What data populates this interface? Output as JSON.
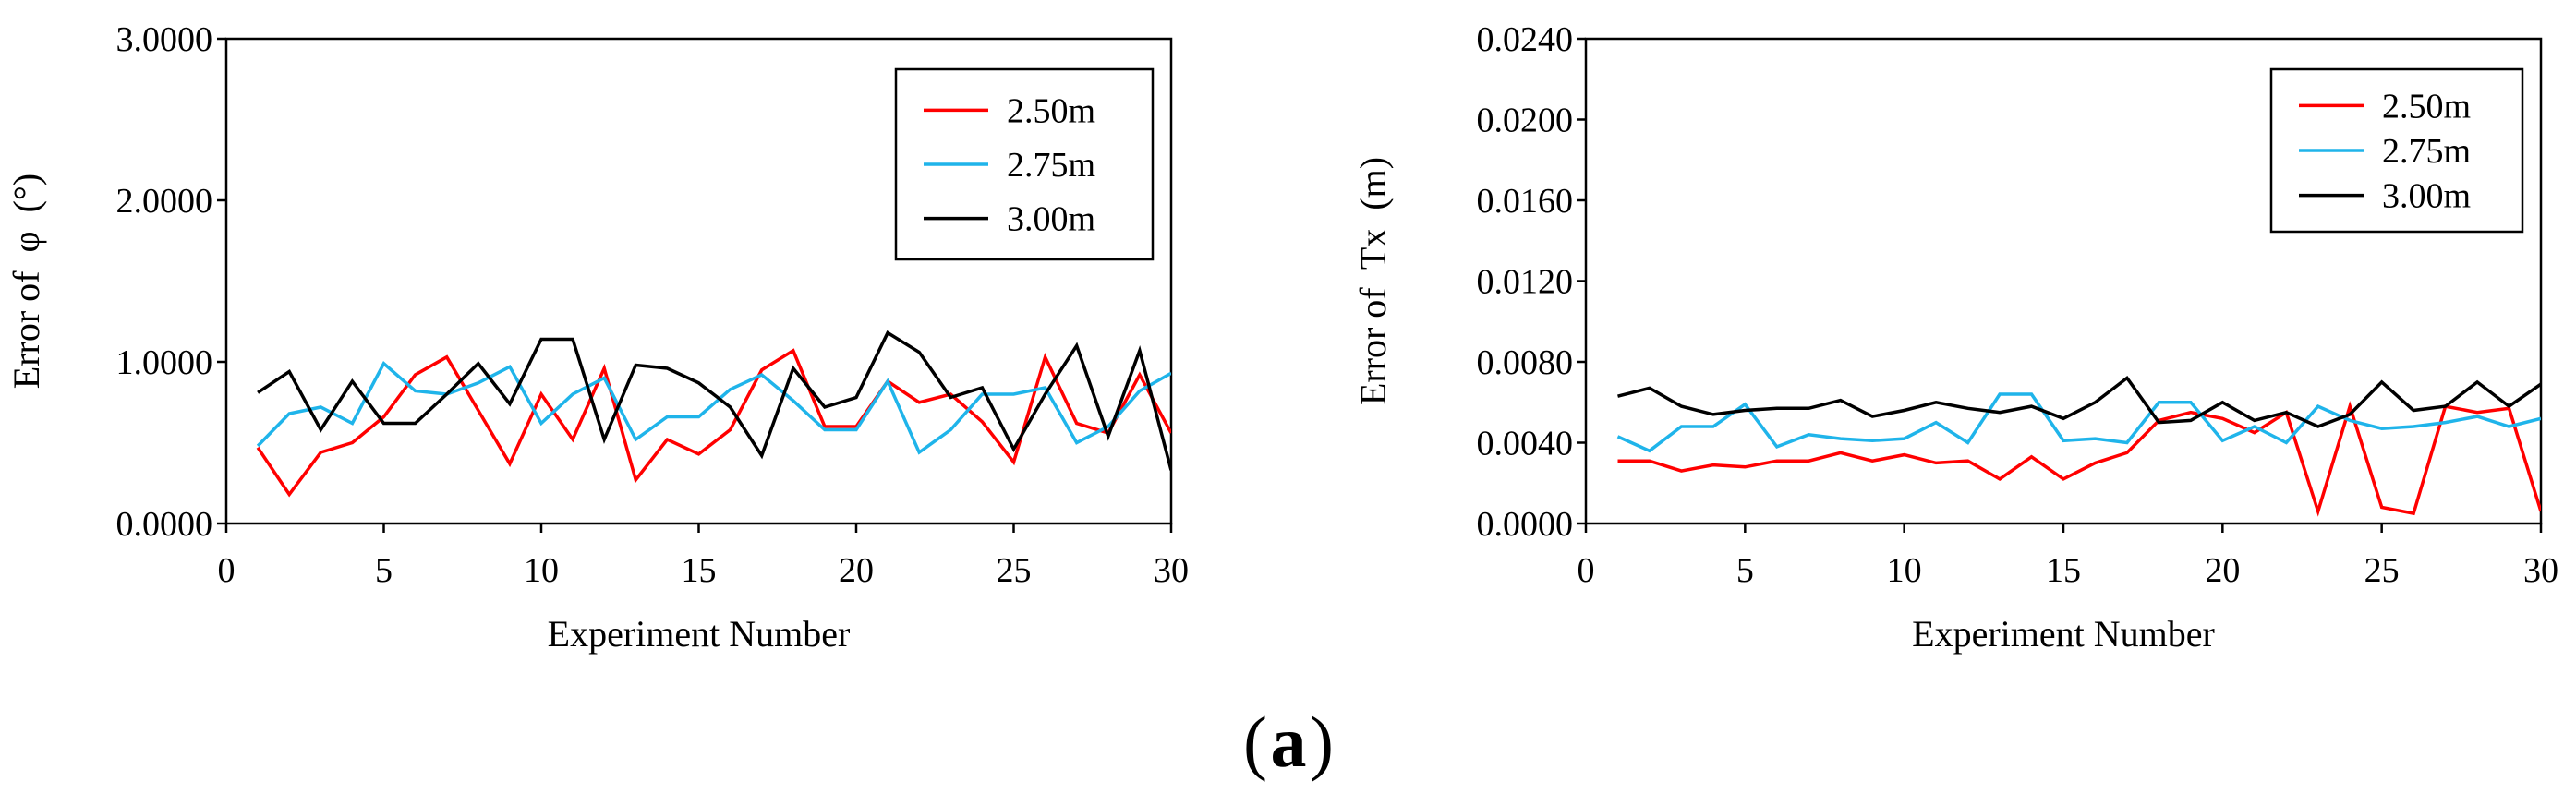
{
  "chart_data": [
    {
      "type": "line",
      "title": "",
      "xlabel": "Experiment Number",
      "ylabel": "Error of  φ  (°)",
      "xlim": [
        0,
        30
      ],
      "ylim": [
        0,
        3
      ],
      "xticks": [
        0,
        5,
        10,
        15,
        20,
        25,
        30
      ],
      "xtick_labels": [
        "0",
        "5",
        "10",
        "15",
        "20",
        "25",
        "30"
      ],
      "yticks": [
        0,
        1,
        2,
        3
      ],
      "ytick_labels": [
        "0.0000",
        "1.0000",
        "2.0000",
        "3.0000"
      ],
      "legend_position": "top-right",
      "grid": false,
      "x": [
        1,
        2,
        3,
        4,
        5,
        6,
        7,
        8,
        9,
        10,
        11,
        12,
        13,
        14,
        15,
        16,
        17,
        18,
        19,
        20,
        21,
        22,
        23,
        24,
        25,
        26,
        27,
        28,
        29,
        30
      ],
      "series": [
        {
          "name": "2.50m",
          "color": "#ff0000",
          "values": [
            0.47,
            0.18,
            0.44,
            0.5,
            0.66,
            0.92,
            1.03,
            0.7,
            0.37,
            0.8,
            0.52,
            0.96,
            0.27,
            0.52,
            0.43,
            0.58,
            0.95,
            1.07,
            0.6,
            0.6,
            0.88,
            0.75,
            0.8,
            0.63,
            0.38,
            1.03,
            0.62,
            0.56,
            0.92,
            0.56
          ]
        },
        {
          "name": "2.75m",
          "color": "#1fb4ea",
          "values": [
            0.48,
            0.68,
            0.72,
            0.62,
            0.99,
            0.82,
            0.8,
            0.87,
            0.97,
            0.62,
            0.8,
            0.9,
            0.52,
            0.66,
            0.66,
            0.83,
            0.92,
            0.76,
            0.58,
            0.58,
            0.88,
            0.44,
            0.58,
            0.8,
            0.8,
            0.84,
            0.5,
            0.6,
            0.82,
            0.93
          ]
        },
        {
          "name": "3.00m",
          "color": "#000000",
          "values": [
            0.81,
            0.94,
            0.58,
            0.88,
            0.62,
            0.62,
            0.8,
            0.99,
            0.74,
            1.14,
            1.14,
            0.52,
            0.98,
            0.96,
            0.87,
            0.72,
            0.42,
            0.96,
            0.72,
            0.78,
            1.18,
            1.06,
            0.78,
            0.84,
            0.46,
            0.8,
            1.1,
            0.54,
            1.07,
            0.33
          ]
        }
      ]
    },
    {
      "type": "line",
      "title": "",
      "xlabel": "Experiment Number",
      "ylabel": "Error of  Tx  (m)",
      "xlim": [
        0,
        30
      ],
      "ylim": [
        0,
        0.024
      ],
      "xticks": [
        0,
        5,
        10,
        15,
        20,
        25,
        30
      ],
      "xtick_labels": [
        "0",
        "5",
        "10",
        "15",
        "20",
        "25",
        "30"
      ],
      "yticks": [
        0,
        0.004,
        0.008,
        0.012,
        0.016,
        0.02,
        0.024
      ],
      "ytick_labels": [
        "0.0000",
        "0.0040",
        "0.0080",
        "0.0120",
        "0.0160",
        "0.0200",
        "0.0240"
      ],
      "legend_position": "top-right",
      "grid": false,
      "x": [
        1,
        2,
        3,
        4,
        5,
        6,
        7,
        8,
        9,
        10,
        11,
        12,
        13,
        14,
        15,
        16,
        17,
        18,
        19,
        20,
        21,
        22,
        23,
        24,
        25,
        26,
        27,
        28,
        29,
        30
      ],
      "series": [
        {
          "name": "2.50m",
          "color": "#ff0000",
          "values": [
            0.0031,
            0.0031,
            0.0026,
            0.0029,
            0.0028,
            0.0031,
            0.0031,
            0.0035,
            0.0031,
            0.0034,
            0.003,
            0.0031,
            0.0022,
            0.0033,
            0.0022,
            0.003,
            0.0035,
            0.0051,
            0.0055,
            0.0052,
            0.0045,
            0.0055,
            0.0006,
            0.0058,
            0.0008,
            0.0005,
            0.0058,
            0.0055,
            0.0057,
            0.0006
          ]
        },
        {
          "name": "2.75m",
          "color": "#1fb4ea",
          "values": [
            0.0043,
            0.0036,
            0.0048,
            0.0048,
            0.0059,
            0.0038,
            0.0044,
            0.0042,
            0.0041,
            0.0042,
            0.005,
            0.004,
            0.0064,
            0.0064,
            0.0041,
            0.0042,
            0.004,
            0.006,
            0.006,
            0.0041,
            0.0048,
            0.004,
            0.0058,
            0.0051,
            0.0047,
            0.0048,
            0.005,
            0.0053,
            0.0048,
            0.0052
          ]
        },
        {
          "name": "3.00m",
          "color": "#000000",
          "values": [
            0.0063,
            0.0067,
            0.0058,
            0.0054,
            0.0056,
            0.0057,
            0.0057,
            0.0061,
            0.0053,
            0.0056,
            0.006,
            0.0057,
            0.0055,
            0.0058,
            0.0052,
            0.006,
            0.0072,
            0.005,
            0.0051,
            0.006,
            0.0051,
            0.0055,
            0.0048,
            0.0054,
            0.007,
            0.0056,
            0.0058,
            0.007,
            0.0058,
            0.0069
          ]
        }
      ]
    }
  ],
  "caption": {
    "open": "(",
    "label": "a",
    "close": ")"
  }
}
